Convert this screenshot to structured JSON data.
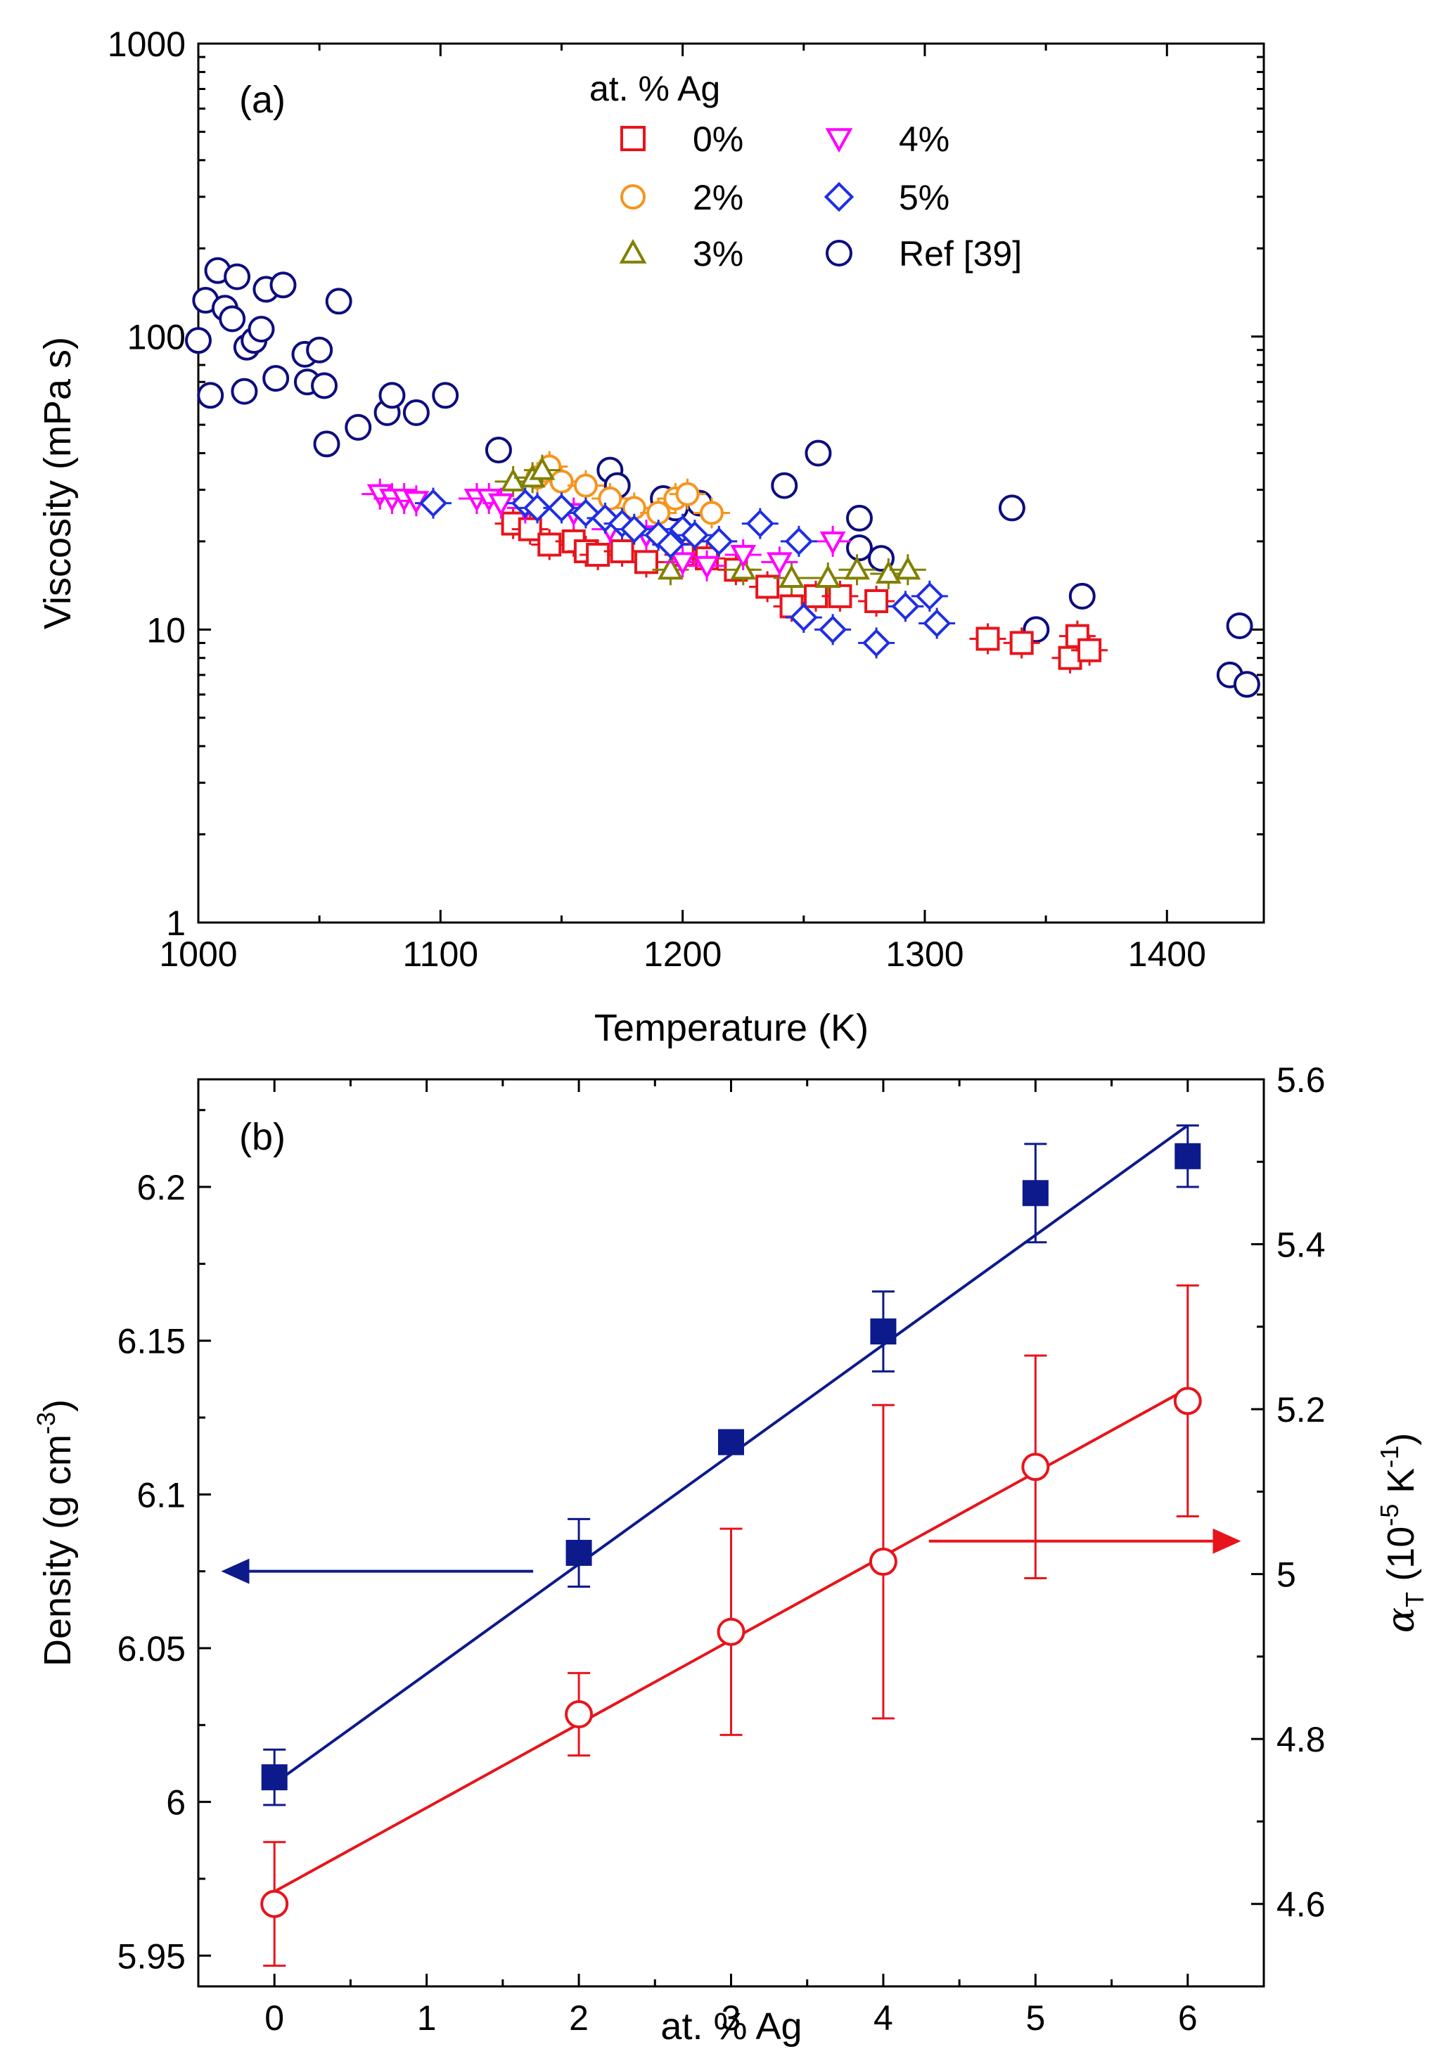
{
  "chart_data": [
    {
      "panel": "(a)",
      "type": "scatter",
      "xlabel": "Temperature (K)",
      "ylabel": "Viscosity (mPa s)",
      "xlim": [
        1000,
        1440
      ],
      "ylim": [
        1,
        1000
      ],
      "yscale": "log",
      "xticks": [
        "1000",
        "1100",
        "1200",
        "1300",
        "1400"
      ],
      "yticks": [
        "1",
        "10",
        "100",
        "1000"
      ],
      "legend_title": "at. % Ag",
      "legend_position": "top-center",
      "series": [
        {
          "name": "0%",
          "marker": "square-open",
          "color": "#e8141b",
          "points": [
            [
              1130,
              23
            ],
            [
              1137,
              22
            ],
            [
              1145,
              19.5
            ],
            [
              1155,
              20
            ],
            [
              1160,
              18.5
            ],
            [
              1165,
              18
            ],
            [
              1175,
              18.5
            ],
            [
              1185,
              17
            ],
            [
              1200,
              18
            ],
            [
              1210,
              17.5
            ],
            [
              1222,
              16
            ],
            [
              1235,
              14
            ],
            [
              1245,
              12
            ],
            [
              1255,
              13
            ],
            [
              1265,
              13
            ],
            [
              1280,
              12.5
            ],
            [
              1326,
              9.3
            ],
            [
              1340,
              9
            ],
            [
              1360,
              8
            ],
            [
              1363,
              9.5
            ],
            [
              1368,
              8.5
            ]
          ]
        },
        {
          "name": "2%",
          "marker": "circle-open",
          "color": "#f7941d",
          "points": [
            [
              1140,
              33
            ],
            [
              1145,
              36
            ],
            [
              1150,
              32
            ],
            [
              1160,
              31
            ],
            [
              1170,
              28
            ],
            [
              1180,
              26
            ],
            [
              1190,
              25
            ],
            [
              1197,
              28
            ],
            [
              1202,
              29
            ],
            [
              1212,
              25
            ]
          ]
        },
        {
          "name": "3%",
          "marker": "triangle-up-open",
          "color": "#808000",
          "points": [
            [
              1130,
              32
            ],
            [
              1138,
              33
            ],
            [
              1142,
              35
            ],
            [
              1195,
              16
            ],
            [
              1225,
              16
            ],
            [
              1245,
              15
            ],
            [
              1260,
              15
            ],
            [
              1272,
              16
            ],
            [
              1285,
              15.5
            ],
            [
              1293,
              16
            ]
          ]
        },
        {
          "name": "4%",
          "marker": "triangle-down-open",
          "color": "#ff00ff",
          "points": [
            [
              1075,
              29
            ],
            [
              1080,
              28
            ],
            [
              1085,
              28
            ],
            [
              1090,
              27.5
            ],
            [
              1115,
              28
            ],
            [
              1120,
              28
            ],
            [
              1125,
              27
            ],
            [
              1135,
              26
            ],
            [
              1155,
              25
            ],
            [
              1170,
              22
            ],
            [
              1185,
              21
            ],
            [
              1200,
              17
            ],
            [
              1210,
              16.5
            ],
            [
              1225,
              18
            ],
            [
              1240,
              17
            ],
            [
              1262,
              20
            ]
          ]
        },
        {
          "name": "5%",
          "marker": "diamond-open",
          "color": "#1f2fe3",
          "points": [
            [
              1097,
              27
            ],
            [
              1135,
              27
            ],
            [
              1140,
              26
            ],
            [
              1150,
              26
            ],
            [
              1160,
              25
            ],
            [
              1168,
              24
            ],
            [
              1175,
              23
            ],
            [
              1180,
              22
            ],
            [
              1190,
              21
            ],
            [
              1195,
              19.5
            ],
            [
              1200,
              22
            ],
            [
              1205,
              21
            ],
            [
              1215,
              20
            ],
            [
              1232,
              23
            ],
            [
              1248,
              20
            ],
            [
              1250,
              11
            ],
            [
              1262,
              10
            ],
            [
              1280,
              9
            ],
            [
              1292,
              12
            ],
            [
              1302,
              13
            ],
            [
              1305,
              10.5
            ]
          ]
        },
        {
          "name": "Ref [39]",
          "marker": "circle-open",
          "color": "#0d0d80",
          "points": [
            [
              1000,
              97
            ],
            [
              1003,
              133
            ],
            [
              1005,
              63
            ],
            [
              1008,
              168
            ],
            [
              1011,
              125
            ],
            [
              1014,
              115
            ],
            [
              1016,
              160
            ],
            [
              1019,
              65
            ],
            [
              1020,
              92
            ],
            [
              1023,
              97
            ],
            [
              1026,
              106
            ],
            [
              1028,
              145
            ],
            [
              1032,
              72
            ],
            [
              1035,
              150
            ],
            [
              1044,
              87
            ],
            [
              1045,
              70
            ],
            [
              1050,
              90
            ],
            [
              1052,
              68
            ],
            [
              1053,
              43
            ],
            [
              1058,
              132
            ],
            [
              1066,
              49
            ],
            [
              1078,
              55
            ],
            [
              1080,
              63
            ],
            [
              1090,
              55
            ],
            [
              1102,
              63
            ],
            [
              1124,
              41
            ],
            [
              1170,
              35
            ],
            [
              1173,
              31
            ],
            [
              1192,
              28
            ],
            [
              1197,
              26
            ],
            [
              1207,
              27
            ],
            [
              1242,
              31
            ],
            [
              1256,
              40
            ],
            [
              1273,
              24
            ],
            [
              1273,
              19
            ],
            [
              1282,
              17.5
            ],
            [
              1336,
              26
            ],
            [
              1346,
              10
            ],
            [
              1365,
              13
            ],
            [
              1426,
              7
            ],
            [
              1430,
              10.3
            ],
            [
              1433,
              6.5
            ]
          ]
        }
      ]
    },
    {
      "panel": "(b)",
      "type": "scatter",
      "xlabel": "at. % Ag",
      "ylabel_left_base": "Density (g cm",
      "ylabel_left_sup": "-3",
      "ylabel_left_end": ")",
      "ylabel_right_sym": "α",
      "ylabel_right_sub": "T",
      "ylabel_right_open": " (10",
      "ylabel_right_sup1": "-5",
      "ylabel_right_mid": " K",
      "ylabel_right_sup2": "-1",
      "ylabel_right_end": ")",
      "xlim": [
        -0.5,
        6.5
      ],
      "ylim_left": [
        5.94,
        6.235
      ],
      "ylim_right": [
        4.5,
        5.6
      ],
      "xticks": [
        "0",
        "1",
        "2",
        "3",
        "4",
        "5",
        "6"
      ],
      "yticks_left": [
        "5.95",
        "6",
        "6.05",
        "6.1",
        "6.15",
        "6.2"
      ],
      "yticks_right": [
        "4.6",
        "4.8",
        "5",
        "5.2",
        "5.4",
        "5.6"
      ],
      "series": [
        {
          "name": "Density",
          "axis": "left",
          "marker": "square-filled",
          "color": "#0d1a8c",
          "points": [
            [
              0,
              6.008,
              0.009
            ],
            [
              2,
              6.081,
              0.011
            ],
            [
              3,
              6.117,
              0.0
            ],
            [
              4,
              6.153,
              0.013
            ],
            [
              5,
              6.198,
              0.016
            ],
            [
              6,
              6.21,
              0.01
            ]
          ],
          "fit": [
            [
              0,
              6.006
            ],
            [
              6,
              6.22
            ]
          ]
        },
        {
          "name": "αT",
          "axis": "right",
          "marker": "circle-open",
          "color": "#e8141b",
          "points": [
            [
              0,
              4.6,
              0.075
            ],
            [
              2,
              4.83,
              0.05
            ],
            [
              3,
              4.93,
              0.125
            ],
            [
              4,
              5.015,
              0.19
            ],
            [
              5,
              5.13,
              0.135
            ],
            [
              6,
              5.21,
              0.14
            ]
          ],
          "fit": [
            [
              0,
              4.615
            ],
            [
              6,
              5.225
            ]
          ]
        }
      ],
      "arrows": [
        {
          "direction": "left",
          "color": "#0d1a8c",
          "from_x": 1.7,
          "to_x": -0.35,
          "at_density": 6.075
        },
        {
          "direction": "right",
          "color": "#e8141b",
          "from_x": 4.3,
          "to_x": 6.35,
          "at_alpha": 5.04
        }
      ]
    }
  ]
}
